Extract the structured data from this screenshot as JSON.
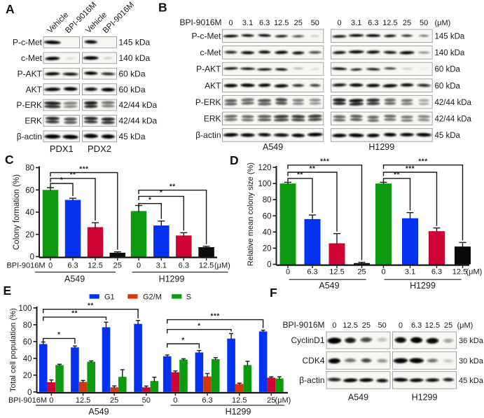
{
  "colors": {
    "green": "#0c9b10",
    "blue": "#0532f0",
    "crimson": "#ce0434",
    "black": "#0b0b0b",
    "vermilion": "#d2380e",
    "text": "#1a1a1a",
    "box_stroke": "#9b9b9b",
    "box_fill": "#f8f6f3"
  },
  "panel_a": {
    "letter": "A",
    "lane_labels": [
      "Vehicle",
      "BPI-9016M"
    ],
    "group_labels": [
      "PDX1",
      "PDX2"
    ],
    "rows": [
      {
        "label": "P-c-Met",
        "kda": "145 kDa",
        "double": false,
        "bands": [
          [
            0.97,
            0.03
          ],
          [
            0.9,
            0.02
          ]
        ]
      },
      {
        "label": "c-Met",
        "kda": "140 kDa",
        "double": false,
        "bands": [
          [
            0.95,
            0.07
          ],
          [
            0.97,
            0.09
          ]
        ]
      },
      {
        "label": "P-AKT",
        "kda": "60 kDa",
        "double": false,
        "bands": [
          [
            0.92,
            0.8
          ],
          [
            0.95,
            0.68
          ]
        ]
      },
      {
        "label": "AKT",
        "kda": "60 kDa",
        "double": false,
        "bands": [
          [
            0.88,
            0.97
          ],
          [
            0.8,
            0.95
          ]
        ]
      },
      {
        "label": "P-ERK",
        "kda": "42/44 kDa",
        "double": true,
        "bands": [
          [
            0.95,
            0.5
          ],
          [
            0.97,
            0.55
          ]
        ]
      },
      {
        "label": "ERK",
        "kda": "42/44 kDa",
        "double": true,
        "bands": [
          [
            0.9,
            0.75
          ],
          [
            0.9,
            0.92
          ]
        ]
      },
      {
        "label": "β-actin",
        "kda": "45 kDa",
        "double": false,
        "bands": [
          [
            0.95,
            1.0
          ],
          [
            0.95,
            0.95
          ]
        ]
      }
    ]
  },
  "panel_b": {
    "letter": "B",
    "treatment_label": "BPI-9016M",
    "doses": [
      "0",
      "3.1",
      "6.3",
      "12.5",
      "25",
      "50"
    ],
    "unit_label": "(μM)",
    "cell_lines": [
      "A549",
      "H1299"
    ],
    "rows": [
      {
        "label": "P-c-Met",
        "kda": "145 kDa",
        "double": false,
        "bands": [
          [
            0.92,
            0.88,
            0.92,
            0.75,
            0.5,
            0.12
          ],
          [
            0.85,
            0.95,
            0.98,
            0.85,
            0.65,
            0.35
          ]
        ]
      },
      {
        "label": "c-Met",
        "kda": "140 kDa",
        "double": false,
        "bands": [
          [
            0.65,
            0.85,
            0.85,
            0.9,
            0.8,
            0.5
          ],
          [
            0.8,
            0.9,
            0.85,
            0.75,
            0.9,
            0.25
          ]
        ]
      },
      {
        "label": "P-AKT",
        "kda": "60 kDa",
        "double": false,
        "bands": [
          [
            0.9,
            0.85,
            0.85,
            0.9,
            0.18,
            0.08
          ],
          [
            0.9,
            0.75,
            0.8,
            0.6,
            0.12,
            0.04
          ]
        ]
      },
      {
        "label": "AKT",
        "kda": "60 kDa",
        "double": false,
        "bands": [
          [
            0.95,
            0.98,
            0.9,
            0.9,
            0.6,
            0.55
          ],
          [
            0.75,
            0.9,
            0.9,
            0.9,
            0.85,
            0.65
          ]
        ]
      },
      {
        "label": "P-ERK",
        "kda": "42/44 kDa",
        "double": true,
        "bands": [
          [
            0.7,
            0.65,
            0.75,
            0.8,
            0.5,
            0.45
          ],
          [
            0.98,
            1.0,
            0.9,
            0.65,
            0.55,
            0.35
          ]
        ]
      },
      {
        "label": "ERK",
        "kda": "42/44 kDa",
        "double": true,
        "bands": [
          [
            0.6,
            0.6,
            0.7,
            0.85,
            0.85,
            0.85
          ],
          [
            0.65,
            0.7,
            0.65,
            0.6,
            0.55,
            0.5
          ]
        ]
      },
      {
        "label": "β-actin",
        "kda": "45 kDa",
        "double": false,
        "bands": [
          [
            0.95,
            0.9,
            0.85,
            0.85,
            0.95,
            0.98
          ],
          [
            0.95,
            0.98,
            0.95,
            0.95,
            0.9,
            0.95
          ]
        ]
      }
    ]
  },
  "panel_c": {
    "letter": "C"
  },
  "panel_d": {
    "letter": "D"
  },
  "panel_e": {
    "letter": "E"
  },
  "panel_f": {
    "letter": "F",
    "treatment_label": "BPI-9016M",
    "unit_label": "(μM)",
    "cell_lines": [
      "A549",
      "H1299"
    ],
    "doses": [
      [
        "0",
        "12.5",
        "25",
        "50"
      ],
      [
        "0",
        "6.3",
        "12.5",
        "25"
      ]
    ],
    "rows": [
      {
        "label": "CyclinD1",
        "kda": "36 kDa",
        "double": false,
        "bands": [
          [
            1.0,
            0.75,
            0.5,
            0.12
          ],
          [
            0.85,
            0.95,
            0.88,
            0.2
          ]
        ]
      },
      {
        "label": "CDK4",
        "kda": "30 kDa",
        "double": false,
        "bands": [
          [
            0.95,
            0.35,
            0.5,
            0.25
          ],
          [
            0.92,
            0.92,
            0.35,
            0.1
          ]
        ]
      },
      {
        "label": "β-actin",
        "kda": "45 kDa",
        "double": false,
        "bands": [
          [
            0.7,
            0.95,
            0.92,
            0.8
          ],
          [
            0.92,
            0.88,
            0.8,
            0.7
          ]
        ]
      }
    ]
  },
  "chart_data": [
    {
      "panel": "C",
      "type": "bar",
      "title": "",
      "xlabel": "",
      "ylabel": "Colony formation (%)",
      "ylim": [
        0,
        80
      ],
      "ytick_step": 20,
      "x_prefix": "BPI-9016M",
      "x_unit": "(μM)",
      "legend_position": "none",
      "grid": false,
      "groups": [
        {
          "name": "A549",
          "doses": [
            "0",
            "6.3",
            "12.5",
            "25"
          ],
          "values": [
            60,
            51,
            26.5,
            3.5
          ],
          "errors": [
            2,
            1.5,
            4,
            0.8
          ],
          "colors": [
            "green",
            "blue",
            "crimson",
            "black"
          ]
        },
        {
          "name": "H1299",
          "doses": [
            "0",
            "3.1",
            "6.3",
            "12.5"
          ],
          "values": [
            41,
            28,
            19,
            8.5
          ],
          "errors": [
            5,
            4,
            2.5,
            0.8
          ],
          "colors": [
            "green",
            "blue",
            "crimson",
            "black"
          ]
        }
      ],
      "significance": [
        {
          "group": 0,
          "from": 0,
          "to": 1,
          "stars": "*"
        },
        {
          "group": 0,
          "from": 0,
          "to": 2,
          "stars": "**"
        },
        {
          "group": 0,
          "from": 0,
          "to": 3,
          "stars": "***"
        },
        {
          "group": 1,
          "from": 0,
          "to": 1,
          "stars": "*"
        },
        {
          "group": 1,
          "from": 0,
          "to": 2,
          "stars": "*"
        },
        {
          "group": 1,
          "from": 0,
          "to": 3,
          "stars": "**"
        }
      ]
    },
    {
      "panel": "D",
      "type": "bar",
      "title": "",
      "xlabel": "",
      "ylabel": "Relative mean colony size (%)",
      "ylim": [
        0,
        120
      ],
      "ytick_step": 20,
      "x_prefix": "",
      "x_unit": "(μM)",
      "legend_position": "none",
      "grid": false,
      "groups": [
        {
          "name": "A549",
          "doses": [
            "0",
            "6.3",
            "12.5",
            "25"
          ],
          "values": [
            100,
            56,
            26,
            1.5
          ],
          "errors": [
            1.5,
            5,
            12,
            1
          ],
          "colors": [
            "green",
            "blue",
            "crimson",
            "black"
          ]
        },
        {
          "name": "H1299",
          "doses": [
            "0",
            "3.1",
            "6.3",
            "12.5"
          ],
          "values": [
            100,
            57,
            41,
            22
          ],
          "errors": [
            1.5,
            7,
            4,
            5
          ],
          "colors": [
            "green",
            "blue",
            "crimson",
            "black"
          ]
        }
      ],
      "significance": [
        {
          "group": 0,
          "from": 0,
          "to": 1,
          "stars": "**"
        },
        {
          "group": 0,
          "from": 0,
          "to": 2,
          "stars": "**"
        },
        {
          "group": 0,
          "from": 0,
          "to": 3,
          "stars": "***"
        },
        {
          "group": 1,
          "from": 0,
          "to": 1,
          "stars": "**"
        },
        {
          "group": 1,
          "from": 0,
          "to": 2,
          "stars": "***"
        },
        {
          "group": 1,
          "from": 0,
          "to": 3,
          "stars": "***"
        }
      ]
    },
    {
      "panel": "E",
      "type": "grouped_bar",
      "title": "",
      "xlabel": "",
      "ylabel": "Total cell population (%)",
      "ylim": [
        0,
        100
      ],
      "ytick_step": 20,
      "x_prefix": "BPI-9016M",
      "x_unit": "(μM)",
      "legend_position": "top",
      "grid": false,
      "series": [
        {
          "name": "G1",
          "color": "blue"
        },
        {
          "name": "G2/M",
          "color": "vermilion"
        },
        {
          "name": "S",
          "color": "green"
        }
      ],
      "groups": [
        {
          "name": "A549",
          "doses": [
            "0",
            "12.5",
            "25",
            "50"
          ],
          "values": [
            [
              57,
              11.5,
              32
            ],
            [
              53,
              12,
              36
            ],
            [
              77,
              5.5,
              18
            ],
            [
              81,
              5.5,
              13
            ]
          ],
          "errors": [
            [
              2.5,
              2.8,
              1
            ],
            [
              1.7,
              1.7,
              1
            ],
            [
              6,
              1.7,
              8.5
            ],
            [
              4,
              1.5,
              4.5
            ]
          ],
          "g2m_colors": [
            "crimson",
            "vermilion",
            "vermilion",
            "crimson"
          ]
        },
        {
          "name": "H1299",
          "doses": [
            "0",
            "6.3",
            "12.5",
            "25"
          ],
          "values": [
            [
              42.5,
              23.5,
              38.5
            ],
            [
              47,
              18.5,
              39
            ],
            [
              63.5,
              9.5,
              32
            ],
            [
              72,
              17,
              16
            ]
          ],
          "errors": [
            [
              1.5,
              1.5,
              1
            ],
            [
              2.3,
              3.5,
              1.8
            ],
            [
              6,
              1,
              4.5
            ],
            [
              1.5,
              1,
              2
            ]
          ],
          "g2m_colors": [
            "crimson",
            "vermilion",
            "vermilion",
            "crimson"
          ]
        }
      ],
      "significance": [
        {
          "group": 0,
          "from": 0,
          "to": 1,
          "stars": "*"
        },
        {
          "group": 0,
          "from": 0,
          "to": 2,
          "stars": "**"
        },
        {
          "group": 0,
          "from": 0,
          "to": 3,
          "stars": "**"
        },
        {
          "group": 1,
          "from": 0,
          "to": 1,
          "stars": "*"
        },
        {
          "group": 1,
          "from": 0,
          "to": 2,
          "stars": "*"
        },
        {
          "group": 1,
          "from": 0,
          "to": 3,
          "stars": "***"
        }
      ]
    }
  ]
}
